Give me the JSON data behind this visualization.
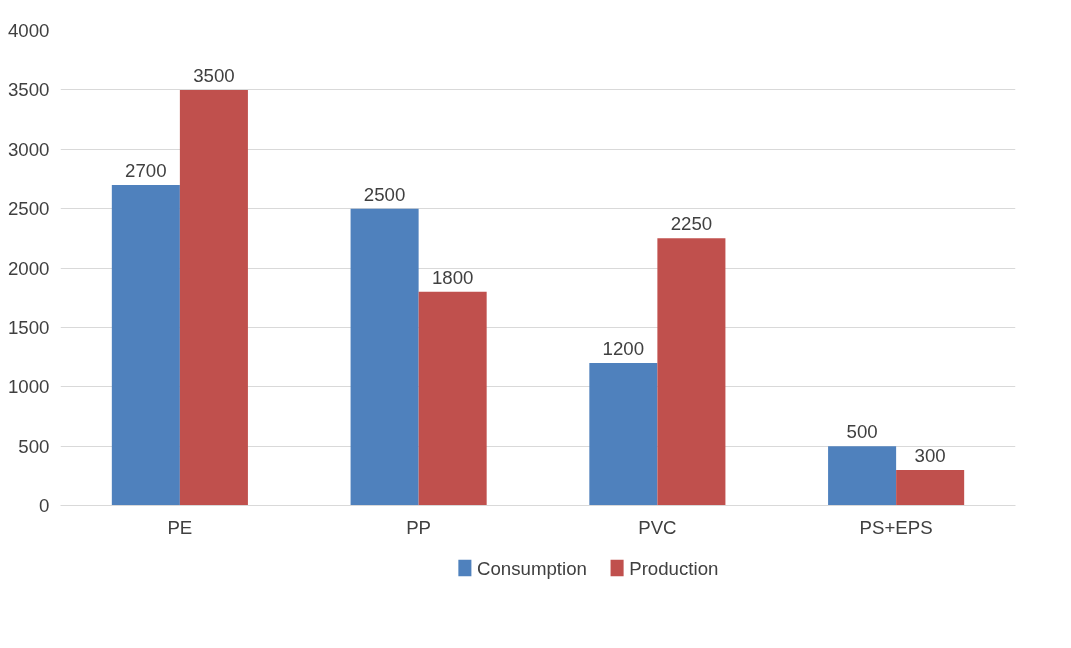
{
  "chart_data": {
    "type": "bar",
    "categories": [
      "PE",
      "PP",
      "PVC",
      "PS+EPS"
    ],
    "series": [
      {
        "name": "Consumption",
        "color": "#4f81bd",
        "values": [
          2700,
          2500,
          1200,
          500
        ]
      },
      {
        "name": "Production",
        "color": "#c0504d",
        "values": [
          3500,
          1800,
          2250,
          300
        ]
      }
    ],
    "ylim": [
      0,
      4000
    ],
    "yticks": [
      0,
      500,
      1000,
      1500,
      2000,
      2500,
      3000,
      3500,
      4000
    ],
    "grid": "y",
    "legend": "bottom",
    "data_labels": true
  }
}
